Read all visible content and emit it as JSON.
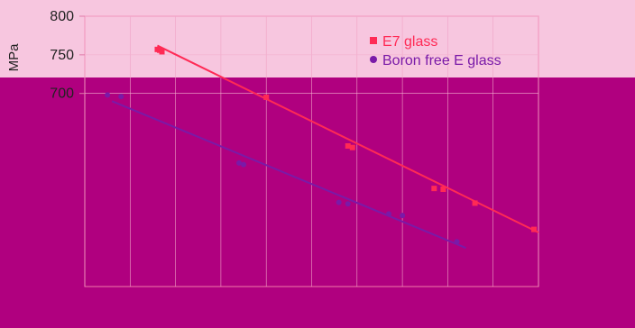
{
  "chart_data": {
    "type": "scatter",
    "title": "",
    "xlabel": "",
    "ylabel": "MPa",
    "ylim": [
      450,
      800
    ],
    "xlim": [
      0,
      100
    ],
    "y_ticks": [
      "800",
      "750",
      "700"
    ],
    "grid": true,
    "legend_position": "top-right",
    "series": [
      {
        "name": "E7 glass",
        "color": "#ff2a55",
        "marker": "square",
        "points": [
          {
            "x": 16,
            "y": 757
          },
          {
            "x": 16.5,
            "y": 756
          },
          {
            "x": 17,
            "y": 754
          },
          {
            "x": 40,
            "y": 695
          },
          {
            "x": 58,
            "y": 632
          },
          {
            "x": 59,
            "y": 630
          },
          {
            "x": 77,
            "y": 577
          },
          {
            "x": 79,
            "y": 576
          },
          {
            "x": 86,
            "y": 558
          },
          {
            "x": 99,
            "y": 524
          }
        ],
        "trend": [
          [
            16,
            762
          ],
          [
            100,
            520
          ]
        ]
      },
      {
        "name": "Boron free E glass",
        "color": "#7a1aa8",
        "marker": "circle",
        "points": [
          {
            "x": 5,
            "y": 698
          },
          {
            "x": 8,
            "y": 696
          },
          {
            "x": 34,
            "y": 610
          },
          {
            "x": 35,
            "y": 608
          },
          {
            "x": 56,
            "y": 559
          },
          {
            "x": 58,
            "y": 557
          },
          {
            "x": 67,
            "y": 544
          },
          {
            "x": 70,
            "y": 542
          },
          {
            "x": 82,
            "y": 508
          }
        ],
        "trend": [
          [
            6,
            690
          ],
          [
            84,
            500
          ]
        ]
      }
    ]
  }
}
